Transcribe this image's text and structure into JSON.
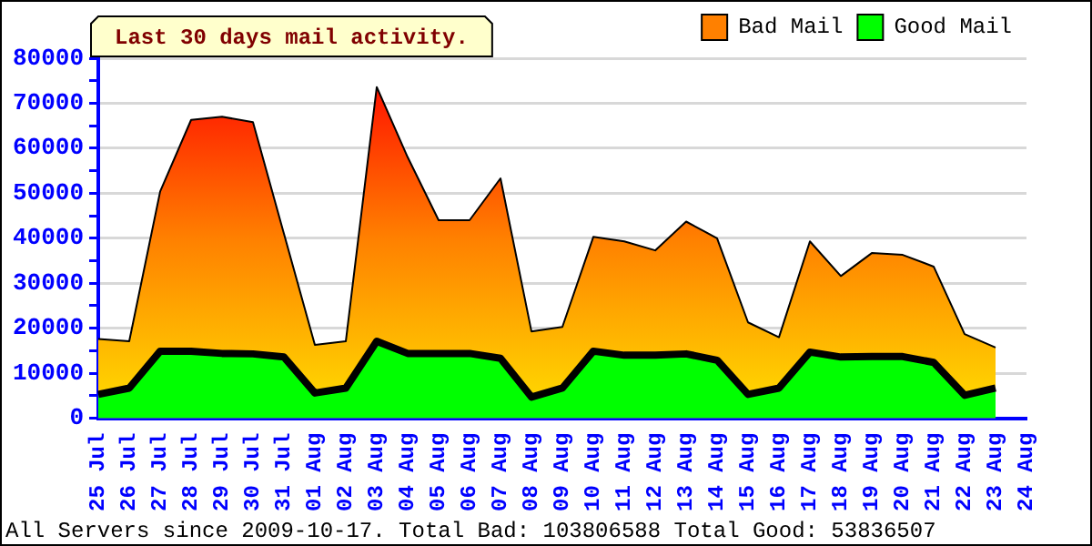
{
  "chart_data": {
    "type": "area",
    "title": "Last 30 days mail activity.",
    "categories": [
      "25 Jul",
      "26 Jul",
      "27 Jul",
      "28 Jul",
      "29 Jul",
      "30 Jul",
      "31 Jul",
      "01 Aug",
      "02 Aug",
      "03 Aug",
      "04 Aug",
      "05 Aug",
      "06 Aug",
      "07 Aug",
      "08 Aug",
      "09 Aug",
      "10 Aug",
      "11 Aug",
      "12 Aug",
      "13 Aug",
      "14 Aug",
      "15 Aug",
      "16 Aug",
      "17 Aug",
      "18 Aug",
      "19 Aug",
      "20 Aug",
      "21 Aug",
      "22 Aug",
      "23 Aug",
      "24 Aug"
    ],
    "series": [
      {
        "name": "Bad Mail",
        "color": "#ff8000",
        "values": [
          17600,
          17100,
          50400,
          66300,
          67000,
          65800,
          41000,
          16300,
          17100,
          73600,
          58000,
          44000,
          44000,
          53300,
          19300,
          20300,
          40300,
          39300,
          37300,
          43700,
          40000,
          21300,
          18000,
          39300,
          31600,
          36700,
          36300,
          33700,
          18700,
          15700,
          null
        ]
      },
      {
        "name": "Good Mail",
        "color": "#00ff00",
        "values": [
          5300,
          6700,
          14900,
          14900,
          14400,
          14300,
          13600,
          5600,
          6700,
          17100,
          14400,
          14400,
          14400,
          13300,
          4700,
          6700,
          14900,
          14000,
          14000,
          14300,
          12900,
          5300,
          6700,
          14700,
          13600,
          13700,
          13700,
          12400,
          5100,
          6700,
          null
        ]
      }
    ],
    "ylim": [
      0,
      80000
    ],
    "yticks": [
      0,
      {
        "value": 5000,
        "label": null
      },
      10000,
      {
        "value": 15000,
        "label": null
      },
      20000,
      {
        "value": 25000,
        "label": null
      },
      30000,
      {
        "value": 35000,
        "label": null
      },
      40000,
      {
        "value": 45000,
        "label": null
      },
      50000,
      {
        "value": 55000,
        "label": null
      },
      60000,
      {
        "value": 65000,
        "label": null
      },
      70000,
      {
        "value": 75000,
        "label": null
      },
      80000
    ],
    "grid": "y",
    "legend": "top right",
    "annotations": [
      "All Servers since 2009-10-17. Total Bad: 103806588 Total Good: 53836507"
    ]
  }
}
